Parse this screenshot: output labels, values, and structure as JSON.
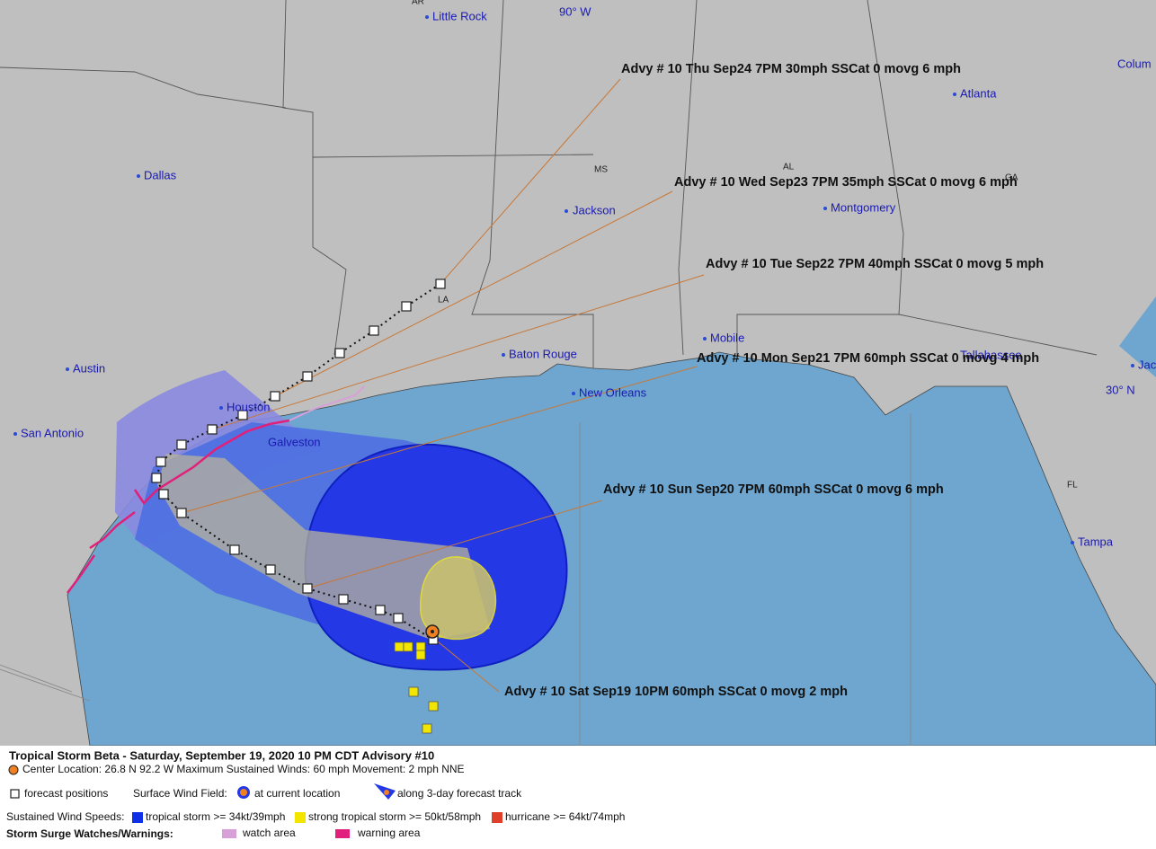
{
  "map": {
    "states": [
      "AR",
      "MS",
      "AL",
      "GA",
      "LA",
      "FL"
    ],
    "grid_labels": [
      "90° W",
      "30° N"
    ],
    "cities": [
      "Little Rock",
      "Colum",
      "Atlanta",
      "Dallas",
      "Jackson",
      "Montgomery",
      "Mobile",
      "Baton Rouge",
      "Tallahassee",
      "Jac",
      "Austin",
      "New Orleans",
      "Houston",
      "San Antonio",
      "Galveston",
      "Tampa"
    ],
    "advisories": [
      "Advy # 10 Thu Sep24 7PM  30mph SSCat 0 movg 6 mph",
      "Advy # 10 Wed Sep23 7PM  35mph SSCat 0 movg 6 mph",
      "Advy # 10 Tue Sep22 7PM  40mph SSCat 0 movg 5 mph",
      "Advy # 10 Mon Sep21 7PM  60mph SSCat 0 movg 4 mph",
      "Advy # 10 Sun Sep20 7PM  60mph SSCat 0 movg 6 mph",
      "Advy # 10 Sat Sep19 10PM  60mph SSCat 0 movg 2 mph"
    ]
  },
  "legend": {
    "title": "Tropical Storm Beta  -  Saturday, September 19, 2020  10 PM CDT   Advisory #10",
    "center_info": "Center Location: 26.8 N  92.2 W   Maximum Sustained Winds: 60 mph   Movement: 2 mph NNE",
    "forecast_positions": "forecast positions",
    "surface_wind_field": "Surface Wind Field:",
    "at_current_location": "at current location",
    "along_track": "along 3-day forecast track",
    "wind_speeds_label": "Sustained Wind Speeds:",
    "tropical_storm": "tropical storm >= 34kt/39mph",
    "strong_tropical_storm": "strong tropical storm >= 50kt/58mph",
    "hurricane": "hurricane >= 64kt/74mph",
    "surge_label": "Storm Surge Watches/Warnings:",
    "watch_area": "watch area",
    "warning_area": "warning area"
  }
}
